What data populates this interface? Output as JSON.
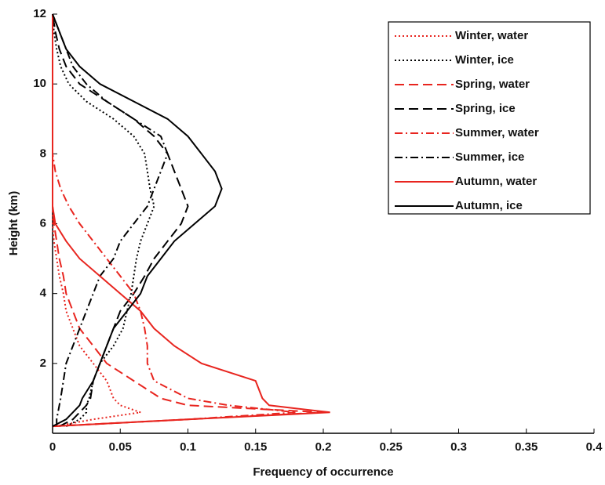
{
  "chart_data": {
    "type": "line",
    "xlabel": "Frequency of occurrence",
    "ylabel": "Height (km)",
    "xlim": [
      0,
      0.4
    ],
    "xticks": [
      0,
      0.05,
      0.1,
      0.15,
      0.2,
      0.25,
      0.3,
      0.35,
      0.4
    ],
    "ylim": [
      0,
      12
    ],
    "yticks": [
      2,
      4,
      6,
      8,
      10,
      12
    ],
    "y": [
      0.2,
      0.4,
      0.6,
      0.8,
      1,
      1.5,
      2,
      2.5,
      3,
      3.5,
      4,
      4.5,
      5,
      5.5,
      6,
      6.5,
      7,
      7.5,
      8,
      8.5,
      9,
      9.5,
      10,
      10.5,
      11,
      11.5,
      12
    ],
    "legend": "upper right",
    "series": [
      {
        "name": "Winter, water",
        "color": "#e8251f",
        "dash": "dotted",
        "values": [
          0.002,
          0.03,
          0.065,
          0.05,
          0.045,
          0.04,
          0.03,
          0.02,
          0.015,
          0.01,
          0.008,
          0.005,
          0.003,
          0.001,
          0,
          0,
          0,
          0,
          0,
          0,
          0,
          0,
          0,
          0,
          0,
          0,
          0
        ]
      },
      {
        "name": "Winter, ice",
        "color": "#000000",
        "dash": "dotted",
        "values": [
          0.01,
          0.02,
          0.025,
          0.025,
          0.027,
          0.03,
          0.035,
          0.045,
          0.052,
          0.055,
          0.058,
          0.06,
          0.062,
          0.065,
          0.07,
          0.075,
          0.072,
          0.07,
          0.068,
          0.06,
          0.045,
          0.025,
          0.012,
          0.006,
          0.003,
          0.001,
          0
        ]
      },
      {
        "name": "Spring, water",
        "color": "#e8251f",
        "dash": "dashed",
        "values": [
          0,
          0.1,
          0.2,
          0.1,
          0.08,
          0.06,
          0.04,
          0.03,
          0.02,
          0.015,
          0.01,
          0.008,
          0.005,
          0.003,
          0.001,
          0,
          0,
          0,
          0,
          0,
          0,
          0,
          0,
          0,
          0,
          0,
          0
        ]
      },
      {
        "name": "Spring, ice",
        "color": "#000000",
        "dash": "dashed",
        "values": [
          0.005,
          0.015,
          0.02,
          0.025,
          0.028,
          0.03,
          0.035,
          0.04,
          0.045,
          0.05,
          0.06,
          0.068,
          0.075,
          0.085,
          0.095,
          0.1,
          0.095,
          0.09,
          0.085,
          0.075,
          0.06,
          0.04,
          0.02,
          0.01,
          0.005,
          0.002,
          0
        ]
      },
      {
        "name": "Summer, water",
        "color": "#e8251f",
        "dash": "dashdot",
        "values": [
          0,
          0.1,
          0.18,
          0.13,
          0.1,
          0.075,
          0.07,
          0.07,
          0.068,
          0.065,
          0.06,
          0.05,
          0.04,
          0.03,
          0.02,
          0.012,
          0.006,
          0.002,
          0,
          0,
          0,
          0,
          0,
          0,
          0,
          0,
          0
        ]
      },
      {
        "name": "Summer, ice",
        "color": "#000000",
        "dash": "dashdot",
        "values": [
          0.003,
          0.003,
          0.004,
          0.005,
          0.006,
          0.008,
          0.01,
          0.015,
          0.02,
          0.025,
          0.03,
          0.035,
          0.045,
          0.05,
          0.06,
          0.07,
          0.075,
          0.08,
          0.085,
          0.08,
          0.06,
          0.04,
          0.025,
          0.015,
          0.01,
          0.005,
          0
        ]
      },
      {
        "name": "Autumn, water",
        "color": "#e8251f",
        "dash": "solid",
        "values": [
          0,
          0.1,
          0.205,
          0.16,
          0.155,
          0.15,
          0.11,
          0.09,
          0.075,
          0.065,
          0.05,
          0.035,
          0.02,
          0.01,
          0.002,
          0,
          0,
          0,
          0,
          0,
          0,
          0,
          0,
          0,
          0,
          0,
          0
        ]
      },
      {
        "name": "Autumn, ice",
        "color": "#000000",
        "dash": "solid",
        "values": [
          0,
          0.01,
          0.015,
          0.02,
          0.022,
          0.03,
          0.035,
          0.04,
          0.045,
          0.055,
          0.065,
          0.07,
          0.08,
          0.09,
          0.105,
          0.12,
          0.125,
          0.12,
          0.11,
          0.1,
          0.085,
          0.06,
          0.035,
          0.02,
          0.01,
          0.005,
          0
        ]
      }
    ]
  }
}
